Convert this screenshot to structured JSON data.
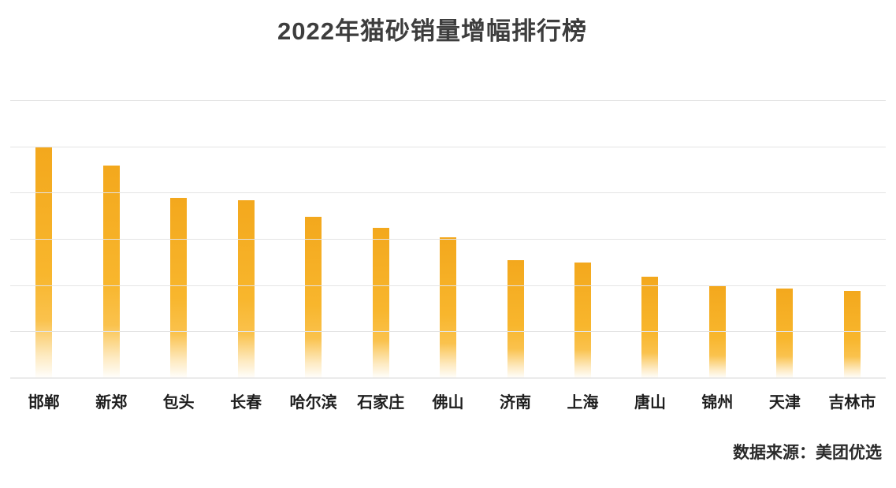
{
  "chart_data": {
    "type": "bar",
    "title": "2022年猫砂销量增幅排行榜",
    "categories": [
      "邯郸",
      "新郑",
      "包头",
      "长春",
      "哈尔滨",
      "石家庄",
      "佛山",
      "济南",
      "上海",
      "唐山",
      "锦州",
      "天津",
      "吉林市"
    ],
    "values": [
      100,
      92,
      78,
      77,
      70,
      65,
      61,
      51,
      50,
      44,
      40,
      39,
      38
    ],
    "xlabel": "",
    "ylabel": "",
    "ylim": [
      0,
      120
    ],
    "grid_interval": 20,
    "grid": true,
    "y_axis_labels_visible": false,
    "legend": false,
    "bar_color": "#F8B62D",
    "source_note": "数据来源：美团优选"
  }
}
